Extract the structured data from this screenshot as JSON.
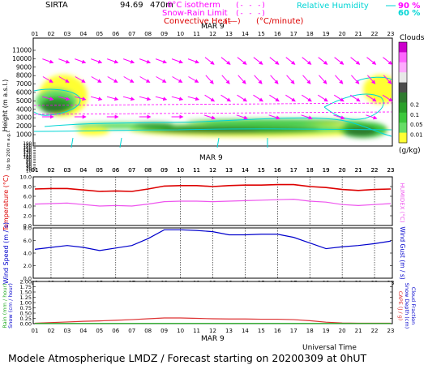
{
  "header": {
    "station": "SIRTA",
    "coords": "94.69",
    "alt_suffix": "470m",
    "legend_iso": "0°C isotherm",
    "legend_snow": "Snow-Rain Limit",
    "legend_conv": "Convective Heat",
    "legend_conv_unit": "(°C/minute)",
    "legend_rh": "Relative Humidity",
    "rh_90": "90 %",
    "rh_60": "60 %",
    "colors": {
      "magenta": "#ff00ff",
      "cyan": "#00e5e5",
      "red": "#dd0000"
    }
  },
  "chart_data": [
    {
      "type": "heatmap",
      "name": "clouds-wind-profile",
      "hours": [
        "01",
        "02",
        "03",
        "04",
        "05",
        "06",
        "07",
        "08",
        "09",
        "10",
        "11",
        "12",
        "13",
        "14",
        "15",
        "16",
        "17",
        "18",
        "19",
        "20",
        "21",
        "22",
        "23"
      ],
      "date": "MAR  9",
      "ylabel": "Height  (m a.s.l.)",
      "ylabel_low": "Up to 200 m a.g.l.",
      "ytick_labels": [
        "11000",
        "10000",
        "9000",
        "8000",
        "7000",
        "6000",
        "5000",
        "4000",
        "3000",
        "2000",
        "1000",
        "190",
        "180",
        "170",
        "160",
        "150",
        "140",
        "130",
        "120",
        "110",
        "100",
        "90",
        "80",
        "70",
        "60",
        "50",
        "40",
        "30",
        "20",
        "10"
      ],
      "colorbar_title": "Clouds",
      "colorbar_unit": "(g/kg)",
      "colorbar_labels": [
        "0.2",
        "0.1",
        "0.05",
        "0.01"
      ],
      "colorbar_colors": [
        "#cc00cc",
        "#ff66ff",
        "#ffaaff",
        "#e8e8e8",
        "#4c4c4c",
        "#2f7a2f",
        "#2aa02a",
        "#3cc83c",
        "#66dd66",
        "#ffff33"
      ]
    },
    {
      "type": "line",
      "name": "temperature-humidex",
      "hours": [
        "01",
        "02",
        "03",
        "04",
        "05",
        "06",
        "07",
        "08",
        "09",
        "10",
        "11",
        "12",
        "13",
        "14",
        "15",
        "16",
        "17",
        "18",
        "19",
        "20",
        "21",
        "22",
        "23"
      ],
      "date": "MAR  9",
      "ylabel": "Temperature (°C)",
      "ylabel_right": "HUMIDEX (°C)",
      "ylim": [
        0,
        10
      ],
      "yticks": [
        "0.0",
        "2.0",
        "4.0",
        "6.0",
        "8.0",
        "10.0"
      ],
      "series": [
        {
          "name": "Temperature",
          "color": "#dd0000",
          "values": [
            7.5,
            7.6,
            7.6,
            7.3,
            7.0,
            7.1,
            7.0,
            7.5,
            8.1,
            8.2,
            8.2,
            8.0,
            8.2,
            8.3,
            8.3,
            8.4,
            8.4,
            8.0,
            7.8,
            7.4,
            7.2,
            7.4,
            7.5
          ]
        },
        {
          "name": "Humidex",
          "color": "#ee55ee",
          "values": [
            4.4,
            4.5,
            4.6,
            4.3,
            4.0,
            4.1,
            4.0,
            4.4,
            4.9,
            5.0,
            5.0,
            4.9,
            5.0,
            5.1,
            5.2,
            5.3,
            5.4,
            5.0,
            4.8,
            4.3,
            4.1,
            4.3,
            4.5
          ]
        }
      ]
    },
    {
      "type": "line",
      "name": "wind",
      "hours": [
        "01",
        "02",
        "03",
        "04",
        "05",
        "06",
        "07",
        "08",
        "09",
        "10",
        "11",
        "12",
        "13",
        "14",
        "15",
        "16",
        "17",
        "18",
        "19",
        "20",
        "21",
        "22",
        "23"
      ],
      "ylabel": "Wind Speed (m / s)",
      "ylabel_right": "Wind Gust (m / s)",
      "ylim": [
        0,
        8
      ],
      "yticks": [
        "0.0",
        "2.0",
        "4.0",
        "6.0",
        "8.0"
      ],
      "series": [
        {
          "name": "Wind Speed",
          "color": "#0000cc",
          "values": [
            4.6,
            4.9,
            5.2,
            4.9,
            4.4,
            4.8,
            5.2,
            6.3,
            7.7,
            7.7,
            7.6,
            7.4,
            6.9,
            6.9,
            7.0,
            7.0,
            6.5,
            5.6,
            4.7,
            5.0,
            5.2,
            5.5,
            5.9
          ]
        }
      ]
    },
    {
      "type": "line",
      "name": "precipitation-cape",
      "hours": [
        "01",
        "02",
        "03",
        "04",
        "05",
        "06",
        "07",
        "08",
        "09",
        "10",
        "11",
        "12",
        "13",
        "14",
        "15",
        "16",
        "17",
        "18",
        "19",
        "20",
        "21",
        "22",
        "23"
      ],
      "date": "MAR  9",
      "xlabel": "Universal Time",
      "ylabel_left_1": "Rain (mm / hour)",
      "ylabel_left_2": "Snow (cm / hour)",
      "ylabel_cape": "CAPE (J / g)",
      "ylabel_snowdepth": "Snow Depth (cm)",
      "ylabel_cloudfrac": "Cloud Fraction",
      "ylim": [
        0,
        2
      ],
      "yticks": [
        "0.00",
        "0.25",
        "0.50",
        "0.75",
        "1.00",
        "1.25",
        "1.50",
        "1.75",
        "2.00"
      ],
      "series": [
        {
          "name": "CAPE",
          "color": "#dd3333",
          "values": [
            0.02,
            0.05,
            0.08,
            0.11,
            0.13,
            0.16,
            0.19,
            0.23,
            0.27,
            0.27,
            0.25,
            0.23,
            0.22,
            0.22,
            0.21,
            0.21,
            0.19,
            0.14,
            0.07,
            0.03,
            0.02,
            0.02,
            0.02
          ]
        },
        {
          "name": "Rain",
          "color": "#22aa22",
          "values": [
            0.01,
            0.01,
            0.01,
            0.01,
            0.01,
            0.01,
            0.01,
            0.01,
            0.01,
            0.01,
            0.01,
            0.01,
            0.01,
            0.01,
            0.01,
            0.01,
            0.01,
            0.01,
            0.01,
            0.01,
            0.01,
            0.01,
            0.01
          ]
        }
      ]
    }
  ],
  "footer": {
    "title": "Modele Atmospherique LMDZ / Forecast starting on 20200309 at 0hUT"
  }
}
